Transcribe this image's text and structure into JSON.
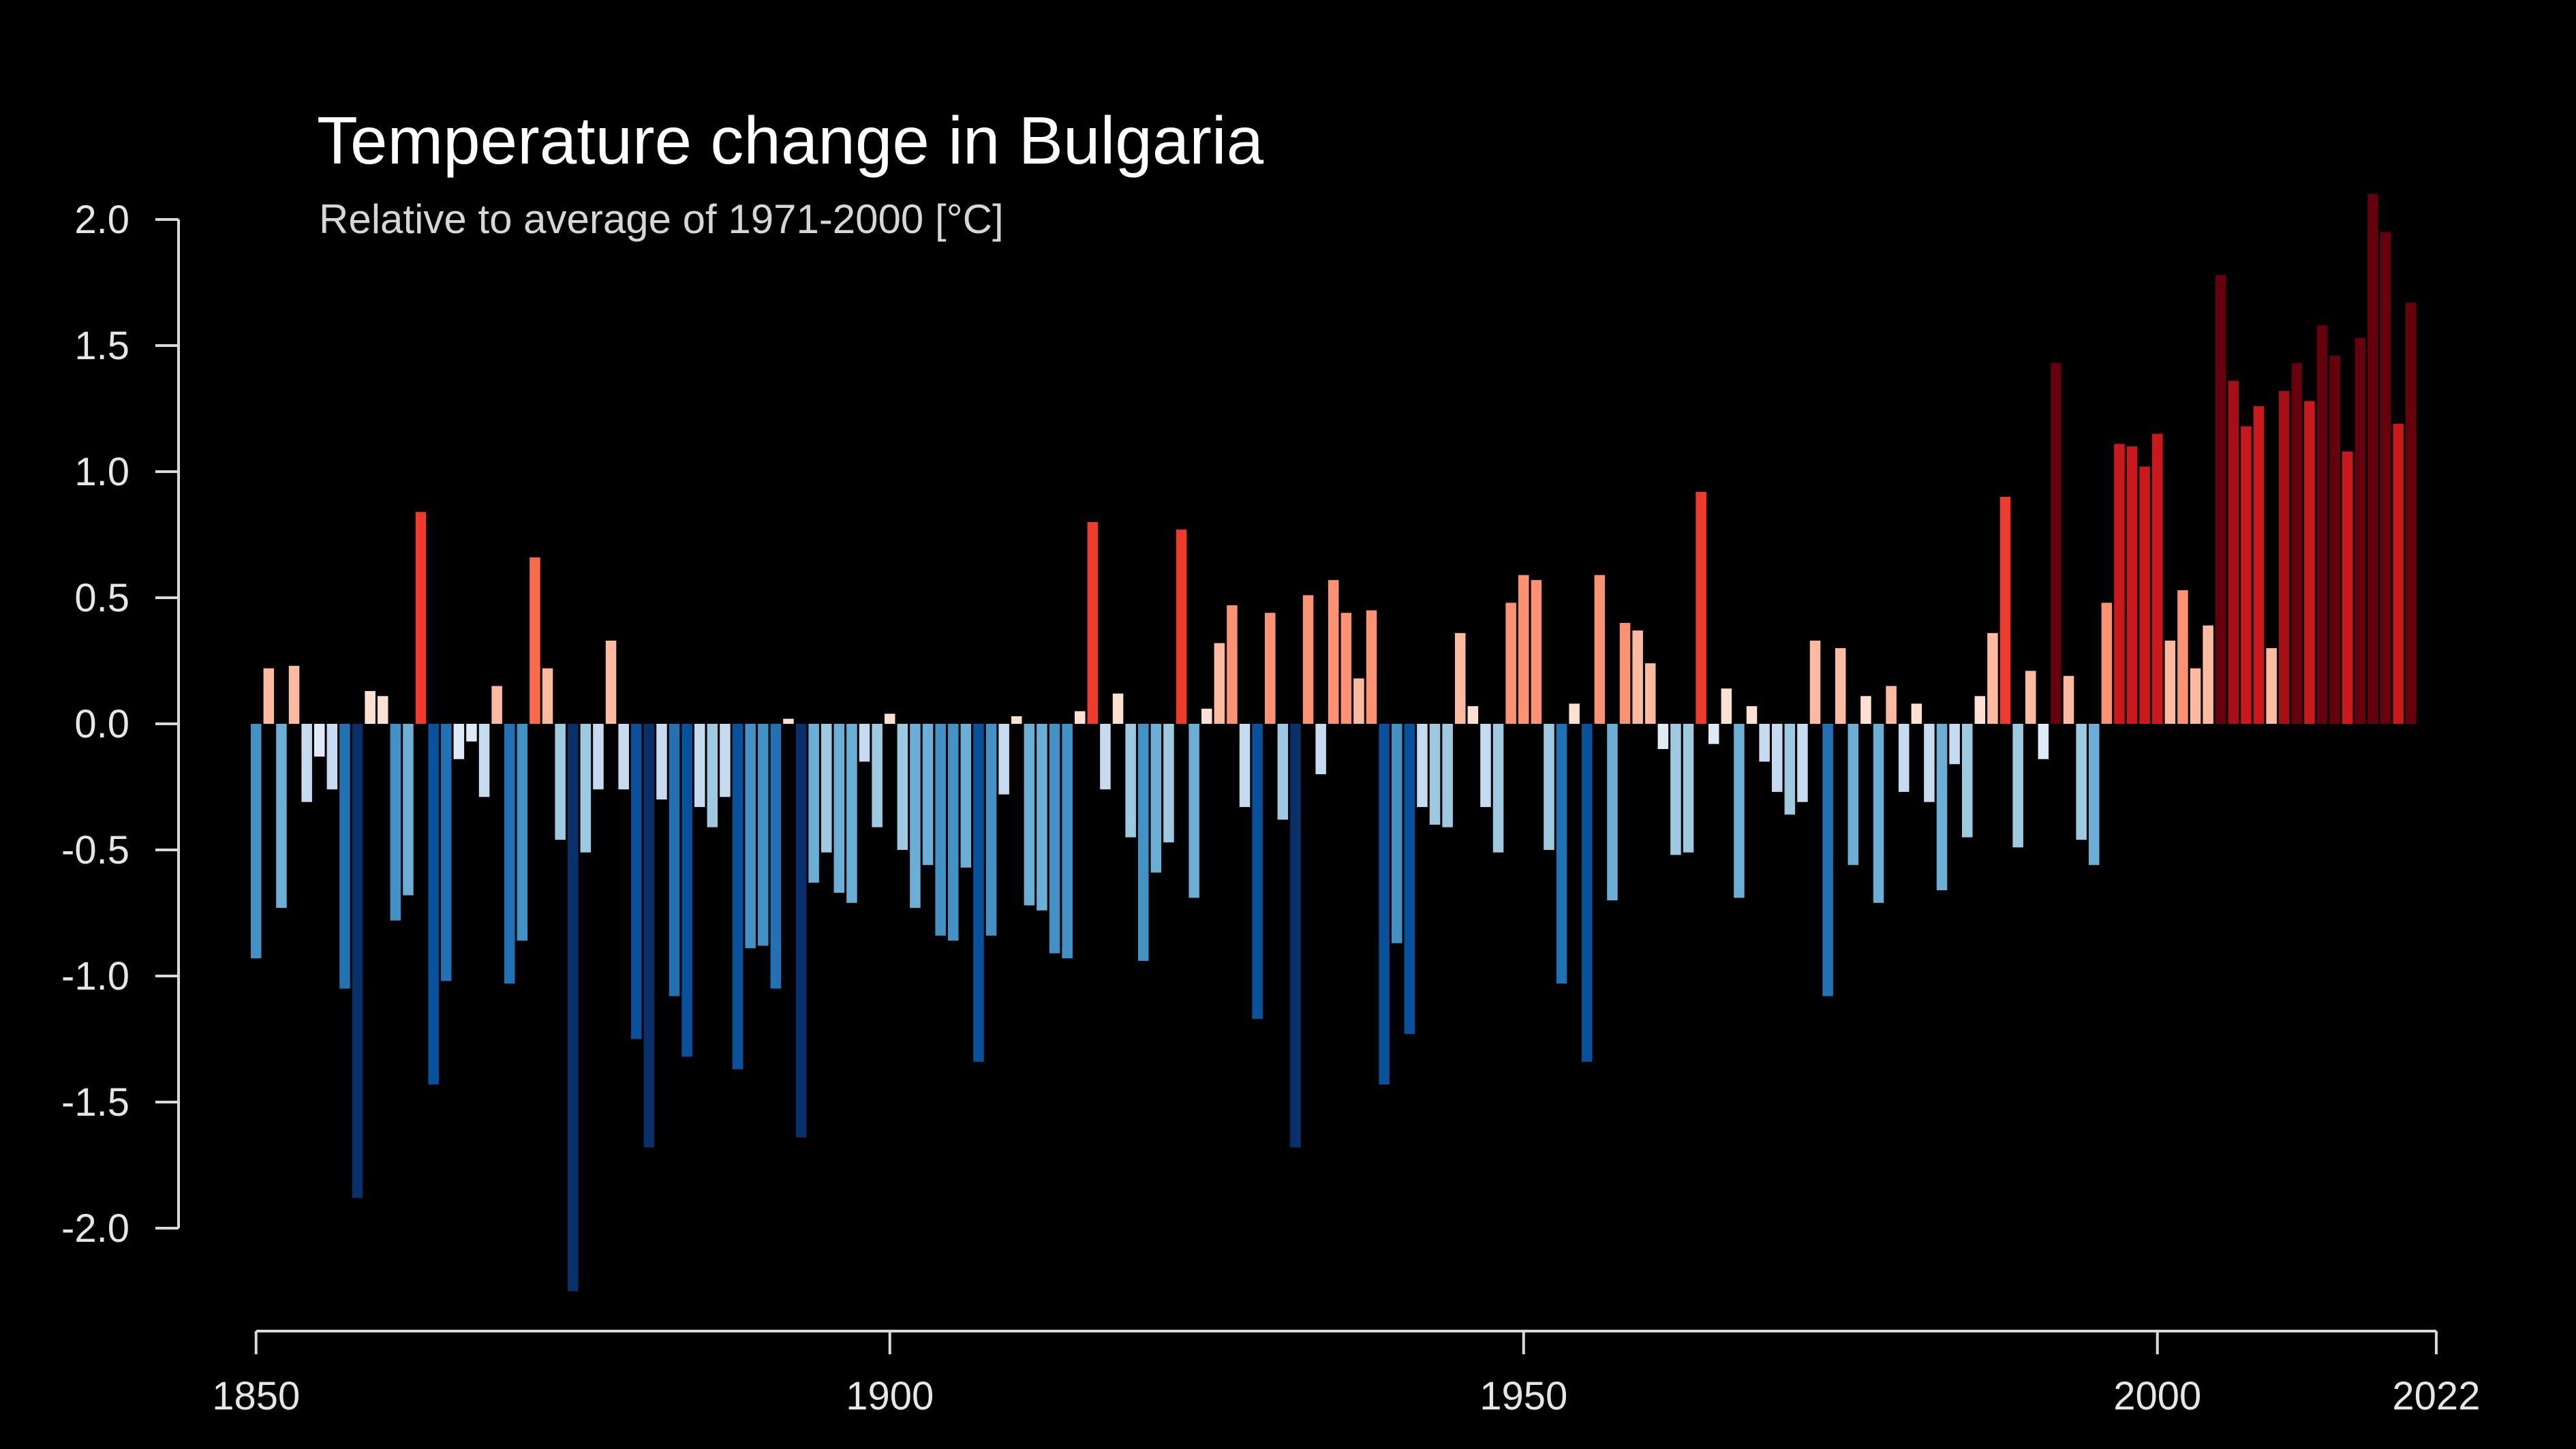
{
  "chart_data": {
    "type": "bar",
    "title": "Temperature change in Bulgaria",
    "subtitle": "Relative to average of 1971-2000  [°C]",
    "xlabel": "",
    "ylabel": "",
    "x_start": 1850,
    "x_end": 2022,
    "xlim": [
      1850,
      2022
    ],
    "ylim": [
      -2.0,
      2.0
    ],
    "y_ticks": [
      "2.0",
      "1.5",
      "1.0",
      "0.5",
      "0.0",
      "-0.5",
      "-1.0",
      "-1.5",
      "-2.0"
    ],
    "x_ticks": [
      "1850",
      "1900",
      "1950",
      "2000",
      "2022"
    ],
    "grid": false,
    "legend": "none",
    "color_scale": {
      "cold_3": "#08306b",
      "cold_2": "#08519c",
      "cold_1": "#2171b5",
      "cool_4": "#4292c6",
      "cool_3": "#6baed6",
      "cool_2": "#9ecae1",
      "cool_1": "#c6dbef",
      "neutral_cool": "#deebf7",
      "neutral_warm": "#fee0d2",
      "warm_1": "#fcbba1",
      "warm_2": "#fc9272",
      "warm_3": "#fb6a4a",
      "warm_4": "#ef3b2c",
      "hot_1": "#cb181d",
      "hot_2": "#a50f15",
      "hot_3": "#67000d"
    },
    "values": [
      -0.93,
      0.22,
      -0.73,
      0.23,
      -0.31,
      -0.13,
      -0.26,
      -1.05,
      -1.88,
      0.13,
      0.11,
      -0.78,
      -0.68,
      0.84,
      -1.43,
      -1.02,
      -0.14,
      -0.07,
      -0.29,
      0.15,
      -1.03,
      -0.86,
      0.66,
      0.22,
      -0.46,
      -2.25,
      -0.51,
      -0.26,
      0.33,
      -0.26,
      -1.25,
      -1.68,
      -0.3,
      -1.08,
      -1.32,
      -0.33,
      -0.41,
      -0.29,
      -1.37,
      -0.89,
      -0.88,
      -1.05,
      0.02,
      -1.64,
      -0.63,
      -0.51,
      -0.67,
      -0.71,
      -0.15,
      -0.41,
      0.04,
      -0.5,
      -0.73,
      -0.56,
      -0.84,
      -0.86,
      -0.57,
      -1.34,
      -0.84,
      -0.28,
      0.03,
      -0.72,
      -0.74,
      -0.91,
      -0.93,
      0.05,
      0.8,
      -0.26,
      0.12,
      -0.45,
      -0.94,
      -0.59,
      -0.47,
      0.77,
      -0.69,
      0.06,
      0.32,
      0.47,
      -0.33,
      -1.17,
      0.44,
      -0.38,
      -1.68,
      0.51,
      -0.2,
      0.57,
      0.44,
      0.18,
      0.45,
      -1.43,
      -0.87,
      -1.23,
      -0.33,
      -0.4,
      -0.41,
      0.36,
      0.07,
      -0.33,
      -0.51,
      0.48,
      0.59,
      0.57,
      -0.5,
      -1.03,
      0.08,
      -1.34,
      0.59,
      -0.7,
      0.4,
      0.37,
      0.24,
      -0.1,
      -0.52,
      -0.51,
      0.92,
      -0.08,
      0.14,
      -0.69,
      0.07,
      -0.15,
      -0.27,
      -0.36,
      -0.31,
      0.33,
      -1.08,
      0.3,
      -0.56,
      0.11,
      -0.71,
      0.15,
      -0.27,
      0.08,
      -0.31,
      -0.66,
      -0.16,
      -0.45,
      0.11,
      0.36,
      0.9,
      -0.49,
      0.21,
      -0.14,
      1.43,
      0.19,
      -0.46,
      -0.56,
      0.48,
      1.11,
      1.1,
      1.02,
      1.15,
      0.33,
      0.53,
      0.22,
      0.39,
      1.78,
      1.36,
      1.18,
      1.26,
      0.3,
      1.32,
      1.43,
      1.28,
      1.58,
      1.46,
      1.08,
      1.53,
      2.1,
      1.95,
      1.19,
      1.67
    ]
  }
}
